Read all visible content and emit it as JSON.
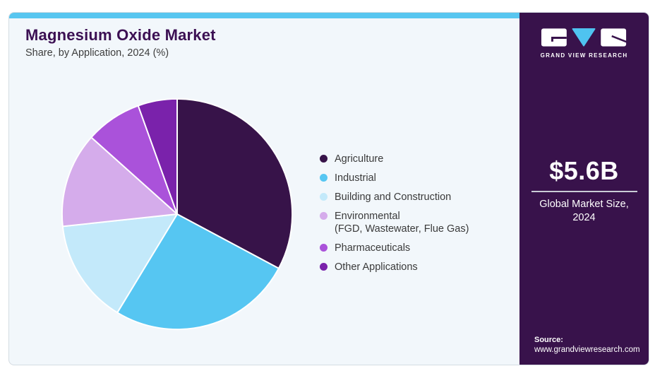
{
  "header": {
    "title": "Magnesium Oxide Market",
    "subtitle": "Share, by Application, 2024 (%)"
  },
  "chart_data": {
    "type": "pie",
    "title": "Magnesium Oxide Market Share, by Application, 2024 (%)",
    "start_angle_deg": 0,
    "direction": "clockwise",
    "values_shown_on_chart": false,
    "legend_position": "right",
    "slices": [
      {
        "label": "Agriculture",
        "value": 32.8,
        "color": "#371349"
      },
      {
        "label": "Industrial",
        "value": 25.9,
        "color": "#56c6f2"
      },
      {
        "label": "Building and Construction",
        "value": 14.6,
        "color": "#c3e9fa"
      },
      {
        "label": "Environmental",
        "label_line2": "(FGD, Wastewater, Flue Gas)",
        "value": 13.3,
        "color": "#d5aceb"
      },
      {
        "label": "Pharmaceuticals",
        "value": 7.9,
        "color": "#aa52da"
      },
      {
        "label": "Other Applications",
        "value": 5.5,
        "color": "#7a22ab"
      }
    ]
  },
  "sidebar": {
    "logo": {
      "brand": "GRAND VIEW RESEARCH",
      "triangle_color": "#4fc3f0"
    },
    "market_size_value": "$5.6B",
    "market_size_label_line1": "Global Market Size,",
    "market_size_label_line2": "2024",
    "source_label": "Source:",
    "source_url": "www.grandviewresearch.com"
  },
  "colors": {
    "accent_bar": "#58c6f0",
    "panel_bg": "#38124b",
    "card_bg": "#f2f7fb",
    "card_border": "#d4dce2",
    "title_color": "#3c1053",
    "slice_stroke": "#ffffff"
  }
}
